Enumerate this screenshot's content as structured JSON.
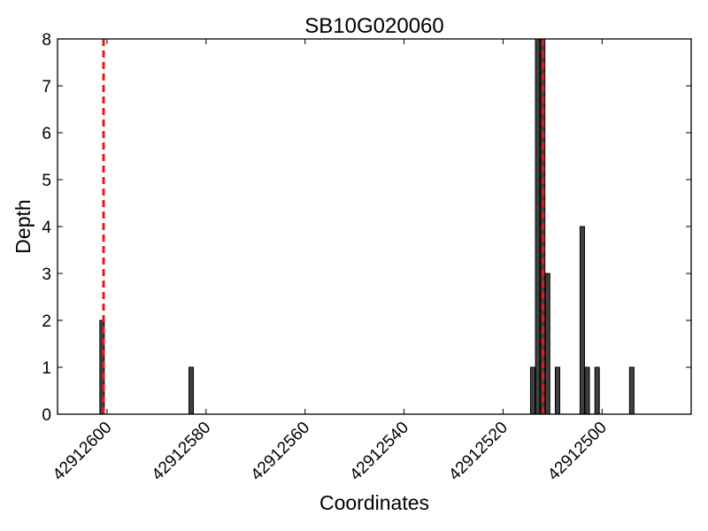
{
  "chart_data": {
    "type": "bar",
    "title": "SB10G020060",
    "xlabel": "Coordinates",
    "ylabel": "Depth",
    "x_axis_reversed": true,
    "xlim": [
      42912610,
      42912482
    ],
    "ylim": [
      0,
      8
    ],
    "grid": false,
    "x_ticks": [
      42912600,
      42912580,
      42912560,
      42912540,
      42912520,
      42912500
    ],
    "x_tick_labels": [
      "42912600",
      "42912580",
      "42912560",
      "42912540",
      "42912520",
      "42912500"
    ],
    "y_ticks": [
      0,
      1,
      2,
      3,
      4,
      5,
      6,
      7,
      8
    ],
    "y_tick_labels": [
      "0",
      "1",
      "2",
      "3",
      "4",
      "5",
      "6",
      "7",
      "8"
    ],
    "series": [
      {
        "color": "#404040",
        "points": [
          {
            "x": 42912601,
            "y": 2
          },
          {
            "x": 42912583,
            "y": 1
          },
          {
            "x": 42912514,
            "y": 1
          },
          {
            "x": 42912513,
            "y": 8
          },
          {
            "x": 42912512,
            "y": 8
          },
          {
            "x": 42912511,
            "y": 3
          },
          {
            "x": 42912509,
            "y": 1
          },
          {
            "x": 42912504,
            "y": 4
          },
          {
            "x": 42912503,
            "y": 1
          },
          {
            "x": 42912501,
            "y": 1
          },
          {
            "x": 42912494,
            "y": 1
          }
        ]
      }
    ],
    "reference_lines": {
      "color": "#e31a1c",
      "style": "dashed",
      "x": [
        42912600.7,
        42912511.9
      ]
    }
  }
}
